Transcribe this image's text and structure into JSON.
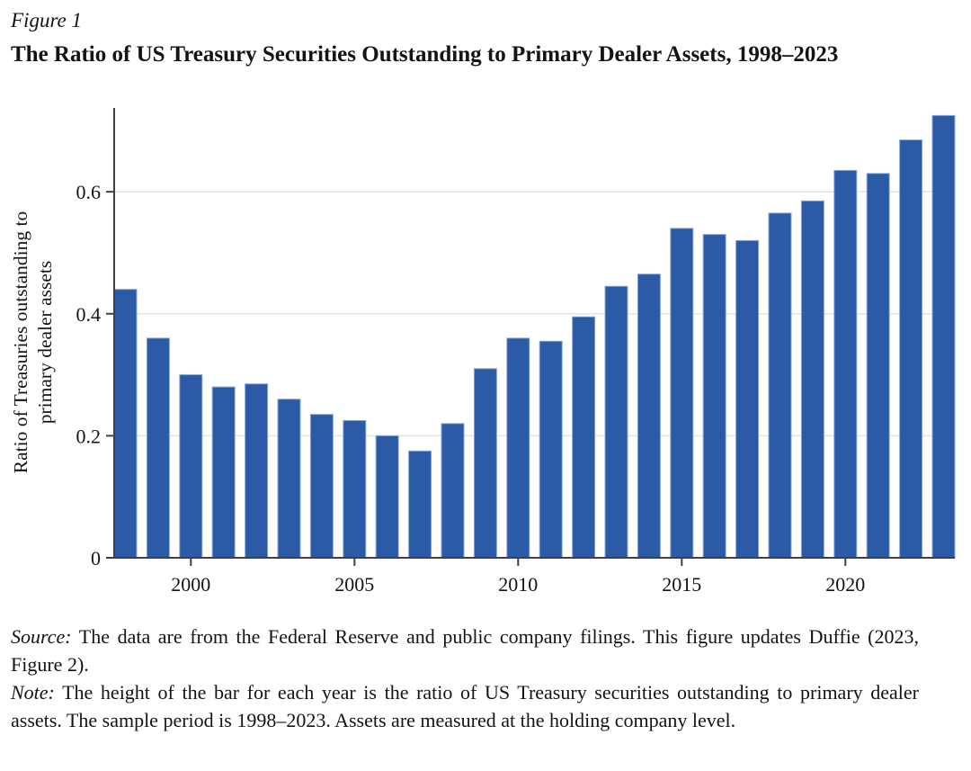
{
  "figure": {
    "label": "Figure 1",
    "title": "The Ratio of US Treasury Securities Outstanding to Primary Dealer Assets, 1998–2023"
  },
  "chart_data": {
    "type": "bar",
    "title": "",
    "xlabel": "",
    "ylabel": "Ratio of Treasuries outstanding to primary dealer assets",
    "ylabel_lines": [
      "Ratio of Treasuries outstanding to",
      "primary dealer assets"
    ],
    "categories": [
      1998,
      1999,
      2000,
      2001,
      2002,
      2003,
      2004,
      2005,
      2006,
      2007,
      2008,
      2009,
      2010,
      2011,
      2012,
      2013,
      2014,
      2015,
      2016,
      2017,
      2018,
      2019,
      2020,
      2021,
      2022,
      2023
    ],
    "values": [
      0.44,
      0.36,
      0.3,
      0.28,
      0.285,
      0.26,
      0.235,
      0.225,
      0.2,
      0.175,
      0.22,
      0.31,
      0.36,
      0.355,
      0.395,
      0.445,
      0.465,
      0.54,
      0.53,
      0.52,
      0.565,
      0.585,
      0.635,
      0.63,
      0.685,
      0.725
    ],
    "ylim": [
      0,
      0.73
    ],
    "yticks": [
      0,
      0.2,
      0.4,
      0.6
    ],
    "xticks": [
      2000,
      2005,
      2010,
      2015,
      2020
    ],
    "grid": "horizontal",
    "legend": "none",
    "colors": {
      "bar": "#2b5aa7",
      "bar_edge": "#8aa5d6",
      "axis": "#404040",
      "gridline": "#e4e4e4",
      "text": "#141414"
    }
  },
  "footnotes": {
    "source_label": "Source:",
    "source_text": " The data are from the Federal Reserve and public company filings. This figure updates Duffie (2023, Figure 2).",
    "note_label": "Note:",
    "note_text": " The height of the bar for each year is the ratio of US Treasury securities outstanding to primary dealer assets. The sample period is 1998–2023. Assets are measured at the holding company level."
  }
}
